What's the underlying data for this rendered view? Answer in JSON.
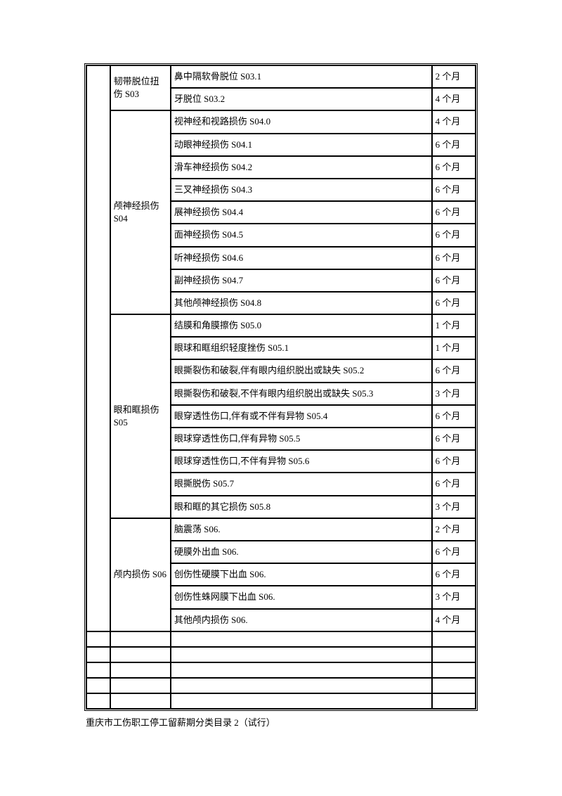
{
  "sections": [
    {
      "category": "韧带脱位扭伤 S03",
      "rows": [
        {
          "desc": "鼻中隔软骨脱位 S03.1",
          "duration": "2 个月"
        },
        {
          "desc": "牙脱位 S03.2",
          "duration": "4 个月"
        }
      ]
    },
    {
      "category": "颅神经损伤 S04",
      "rows": [
        {
          "desc": "视神经和视路损伤 S04.0",
          "duration": "4 个月"
        },
        {
          "desc": "动眼神经损伤 S04.1",
          "duration": "6 个月"
        },
        {
          "desc": "滑车神经损伤 S04.2",
          "duration": "6 个月"
        },
        {
          "desc": "三叉神经损伤 S04.3",
          "duration": "6 个月"
        },
        {
          "desc": "展神经损伤 S04.4",
          "duration": "6 个月"
        },
        {
          "desc": "面神经损伤 S04.5",
          "duration": "6 个月"
        },
        {
          "desc": "听神经损伤 S04.6",
          "duration": "6 个月"
        },
        {
          "desc": "副神经损伤 S04.7",
          "duration": "6 个月"
        },
        {
          "desc": "其他颅神经损伤 S04.8",
          "duration": "6 个月"
        }
      ]
    },
    {
      "category": "眼和眶损伤 S05",
      "rows": [
        {
          "desc": "结膜和角膜擦伤 S05.0",
          "duration": "1 个月"
        },
        {
          "desc": "眼球和眶组织轻度挫伤 S05.1",
          "duration": "1 个月"
        },
        {
          "desc": "眼撕裂伤和破裂,伴有眼内组织脱出或缺失 S05.2",
          "duration": "6 个月"
        },
        {
          "desc": "眼撕裂伤和破裂,不伴有眼内组织脱出或缺失 S05.3",
          "duration": "3 个月"
        },
        {
          "desc": "眼穿透性伤口,伴有或不伴有异物 S05.4",
          "duration": "6 个月"
        },
        {
          "desc": "眼球穿透性伤口,伴有异物 S05.5",
          "duration": "6 个月"
        },
        {
          "desc": "眼球穿透性伤口,不伴有异物 S05.6",
          "duration": "6 个月"
        },
        {
          "desc": "眼撕脱伤 S05.7",
          "duration": "6 个月"
        },
        {
          "desc": "眼和眶的其它损伤 S05.8",
          "duration": "3 个月"
        }
      ]
    },
    {
      "category": "颅内损伤 S06",
      "rows": [
        {
          "desc": "脑震荡 S06.",
          "duration": "2 个月"
        },
        {
          "desc": "硬膜外出血 S06.",
          "duration": "6 个月"
        },
        {
          "desc": "创伤性硬膜下出血 S06.",
          "duration": "6 个月"
        },
        {
          "desc": "创伤性蛛网膜下出血 S06.",
          "duration": "3 个月"
        },
        {
          "desc": "其他颅内损伤 S06.",
          "duration": "4 个月"
        }
      ]
    }
  ],
  "emptyRowCount": 5,
  "footer": "重庆市工伤职工停工留薪期分类目录 2（试行）"
}
